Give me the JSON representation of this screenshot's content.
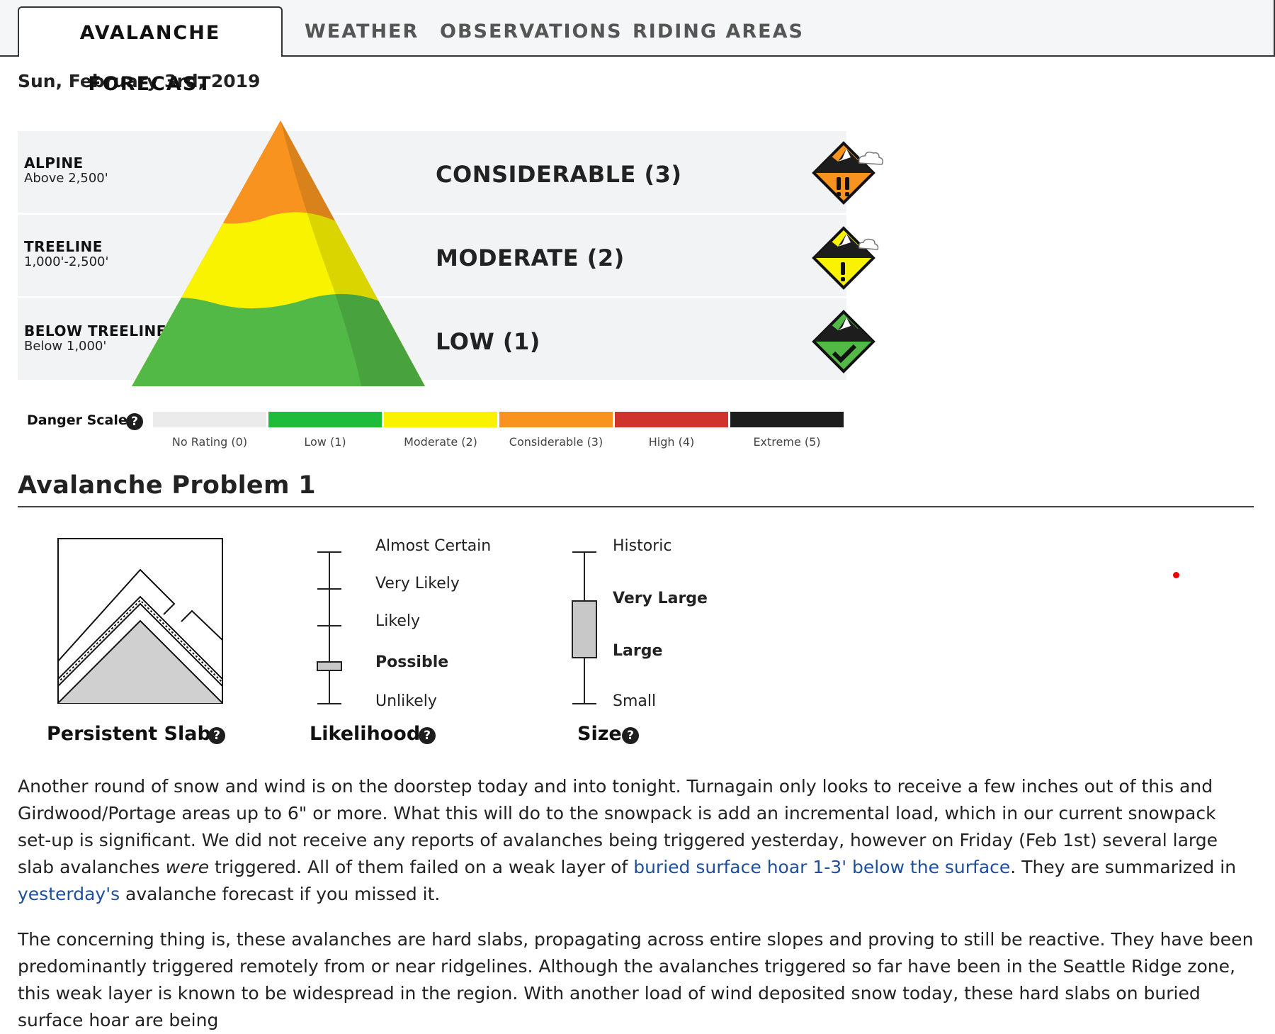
{
  "tabs": [
    {
      "label": "AVALANCHE FORECAST",
      "active": true
    },
    {
      "label": "WEATHER",
      "active": false
    },
    {
      "label": "OBSERVATIONS",
      "active": false
    },
    {
      "label": "RIDING AREAS",
      "active": false
    }
  ],
  "date": "Sun, February 3rd, 2019",
  "zones": [
    {
      "name": "ALPINE",
      "elevation": "Above 2,500'",
      "rating": "CONSIDERABLE (3)",
      "level": 3,
      "icon": "considerable-danger-icon"
    },
    {
      "name": "TREELINE",
      "elevation": "1,000'-2,500'",
      "rating": "MODERATE (2)",
      "level": 2,
      "icon": "moderate-danger-icon"
    },
    {
      "name": "BELOW TREELINE",
      "elevation": "Below 1,000'",
      "rating": "LOW (1)",
      "level": 1,
      "icon": "low-danger-icon"
    }
  ],
  "danger_scale": {
    "label": "Danger Scale:",
    "help_glyph": "?",
    "levels": [
      {
        "label": "No Rating (0)",
        "color": "#ebebeb"
      },
      {
        "label": "Low (1)",
        "color": "#1fbc3c"
      },
      {
        "label": "Moderate (2)",
        "color": "#f9f300"
      },
      {
        "label": "Considerable (3)",
        "color": "#f7931e"
      },
      {
        "label": "High (4)",
        "color": "#d0332b"
      },
      {
        "label": "Extreme (5)",
        "color": "#1d1d1d"
      }
    ]
  },
  "problem": {
    "title": "Avalanche Problem 1",
    "type": "Persistent Slabs",
    "likelihood_caption": "Likelihood",
    "size_caption": "Size",
    "likelihood_levels": [
      "Almost Certain",
      "Very Likely",
      "Likely",
      "Possible",
      "Unlikely"
    ],
    "likelihood_selected": "Possible",
    "size_levels": [
      "Historic",
      "Very Large",
      "Large",
      "Small"
    ],
    "size_selected": [
      "Very Large",
      "Large"
    ]
  },
  "paragraphs": {
    "p1_a": "Another round of snow and wind is on the doorstep today and into tonight. Turnagain only looks to receive a few inches out of this and Girdwood/Portage areas up to 6\" or more. What this will do to the snowpack is add an incremental load, which in our current snowpack set-up is significant. We did not receive any reports of avalanches being triggered yesterday, however on Friday (Feb 1st) several large slab avalanches ",
    "p1_em": "were",
    "p1_b": " triggered. All of them failed on a weak layer of ",
    "p1_link1": "buried surface hoar 1-3' below the surface",
    "p1_c": ". They are summarized in ",
    "p1_link2": "yesterday's",
    "p1_d": " avalanche forecast if you missed it.",
    "p2": "The concerning thing is, these avalanches are hard slabs, propagating across entire slopes and proving to still be reactive. They have been predominantly triggered remotely from or near ridgelines. Although the avalanches triggered so far have been in the Seattle Ridge zone, this weak layer is known to be widespread in the region. With another load of wind deposited snow today, these hard slabs on buried surface hoar are being"
  }
}
